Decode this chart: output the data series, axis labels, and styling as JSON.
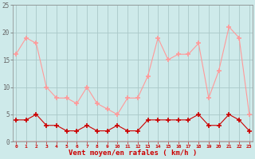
{
  "x": [
    0,
    1,
    2,
    3,
    4,
    5,
    6,
    7,
    8,
    9,
    10,
    11,
    12,
    13,
    14,
    15,
    16,
    17,
    18,
    19,
    20,
    21,
    22,
    23
  ],
  "rafales": [
    16,
    19,
    18,
    10,
    8,
    8,
    7,
    10,
    7,
    6,
    5,
    8,
    8,
    12,
    19,
    15,
    16,
    16,
    18,
    8,
    13,
    21,
    19,
    5
  ],
  "moyen": [
    4,
    4,
    5,
    3,
    3,
    2,
    2,
    3,
    2,
    2,
    3,
    2,
    2,
    4,
    4,
    4,
    4,
    4,
    5,
    3,
    3,
    5,
    4,
    2
  ],
  "bg_color": "#ceeaea",
  "grid_color": "#aac8c8",
  "line_color_rafales": "#ff9999",
  "line_color_moyen": "#cc0000",
  "xlabel": "Vent moyen/en rafales ( km/h )",
  "xlabel_color": "#cc0000",
  "yticks": [
    0,
    5,
    10,
    15,
    20,
    25
  ],
  "xlim": [
    -0.3,
    23.3
  ],
  "ylim": [
    0,
    25
  ]
}
